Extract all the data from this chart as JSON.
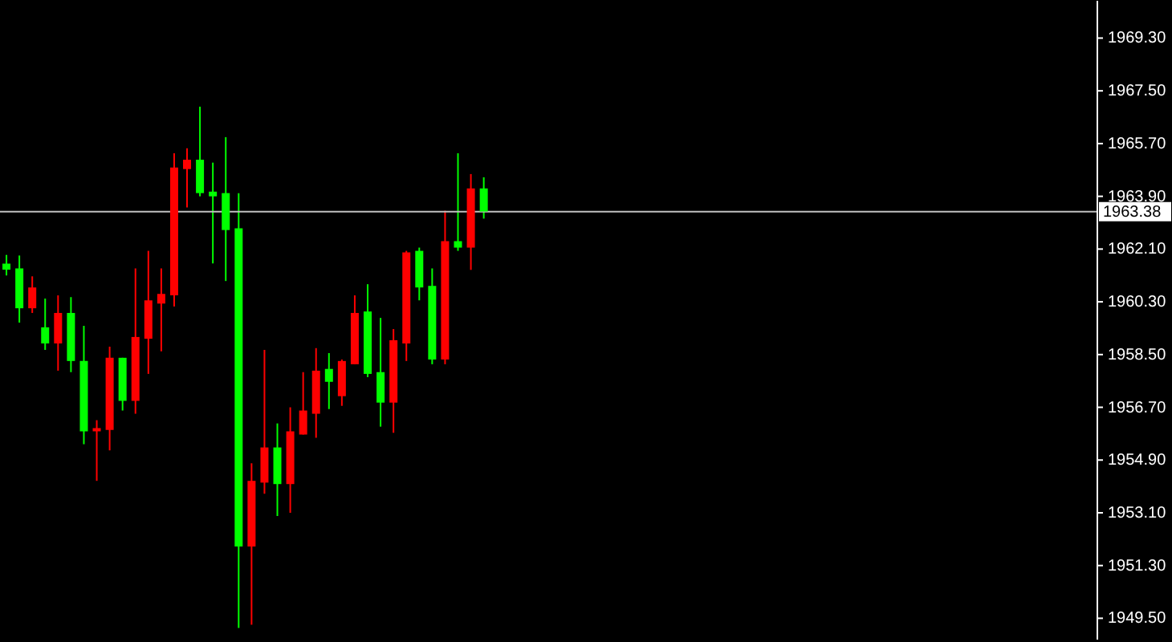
{
  "chart_data": {
    "type": "candlestick",
    "categories": [
      null,
      null,
      null,
      null,
      null,
      null,
      null,
      null,
      null,
      null,
      null,
      null,
      null,
      null,
      null,
      null,
      null,
      null,
      null,
      null,
      null,
      null,
      null,
      null,
      null,
      null,
      null,
      null,
      null,
      null,
      null,
      null,
      null,
      null,
      null,
      null,
      null,
      null,
      null,
      null,
      null,
      null,
      null,
      null,
      null,
      null,
      null,
      null,
      null,
      null,
      null,
      null,
      null,
      null,
      null,
      null,
      null,
      null,
      null,
      null,
      null,
      null,
      null,
      null,
      null,
      null,
      null,
      null,
      null,
      null,
      null,
      null,
      null,
      null,
      null,
      null,
      null,
      null,
      null,
      null,
      null,
      null,
      null,
      null,
      null
    ],
    "ohlc": [
      [
        1961.6,
        1961.9,
        1961.2,
        1961.4
      ],
      [
        1961.44,
        1961.88,
        1959.59,
        1960.08
      ],
      [
        1960.08,
        1961.17,
        1959.92,
        1960.79
      ],
      [
        1959.43,
        1960.41,
        1958.66,
        1958.88
      ],
      [
        1958.88,
        1960.52,
        1957.95,
        1959.92
      ],
      [
        1959.92,
        1960.46,
        1957.9,
        1958.28
      ],
      [
        1958.28,
        1959.48,
        1955.44,
        1955.88
      ],
      [
        1955.88,
        1956.26,
        1954.19,
        1955.99
      ],
      [
        1955.93,
        1958.77,
        1955.23,
        1958.39
      ],
      [
        1958.39,
        1958.39,
        1956.59,
        1956.92
      ],
      [
        1956.92,
        1961.44,
        1956.48,
        1959.1
      ],
      [
        1959.04,
        1962.04,
        1957.84,
        1960.35
      ],
      [
        1960.24,
        1961.44,
        1958.61,
        1960.57
      ],
      [
        1960.52,
        1965.37,
        1960.14,
        1964.88
      ],
      [
        1964.83,
        1965.54,
        1963.52,
        1965.15
      ],
      [
        1965.15,
        1966.96,
        1963.9,
        1964.01
      ],
      [
        1964.06,
        1965.05,
        1961.61,
        1963.9
      ],
      [
        1964.01,
        1965.92,
        1961.01,
        1962.75
      ],
      [
        1962.81,
        1964.01,
        1949.17,
        1951.95
      ],
      [
        1951.95,
        1954.79,
        1949.28,
        1954.19
      ],
      [
        1954.13,
        1958.66,
        1953.75,
        1955.33
      ],
      [
        1955.33,
        1956.15,
        1952.99,
        1954.08
      ],
      [
        1954.08,
        1956.7,
        1953.1,
        1955.88
      ],
      [
        1955.77,
        1957.9,
        1955.77,
        1956.59
      ],
      [
        1956.48,
        1958.72,
        1955.66,
        1957.95
      ],
      [
        1958.01,
        1958.55,
        1956.64,
        1957.57
      ],
      [
        1957.08,
        1958.33,
        1956.75,
        1958.28
      ],
      [
        1958.17,
        1960.52,
        1958.17,
        1959.92
      ],
      [
        1959.97,
        1960.9,
        1957.73,
        1957.84
      ],
      [
        1957.9,
        1959.75,
        1956.04,
        1956.86
      ],
      [
        1956.86,
        1959.37,
        1955.83,
        1958.99
      ],
      [
        1958.88,
        1962.04,
        1958.28,
        1961.99
      ],
      [
        1962.04,
        1962.15,
        1960.35,
        1960.79
      ],
      [
        1960.84,
        1961.44,
        1958.17,
        1958.33
      ],
      [
        1958.33,
        1963.41,
        1958.17,
        1962.37
      ],
      [
        1962.37,
        1965.37,
        1962.04,
        1962.15
      ],
      [
        1962.15,
        1964.66,
        1961.39,
        1964.17
      ],
      [
        1964.17,
        1964.55,
        1963.14,
        1963.38
      ],
      null,
      null,
      null,
      null,
      null,
      null,
      null,
      null,
      null,
      null,
      null,
      null,
      null,
      null,
      null,
      null,
      null,
      null,
      null,
      null,
      null,
      null,
      null,
      null,
      null,
      null,
      null,
      null,
      null,
      null,
      null,
      null,
      null,
      null,
      null,
      null,
      null,
      null,
      null,
      null,
      null,
      null,
      null,
      null,
      null,
      null,
      null
    ],
    "colors": [
      "#00ff00",
      "#00ff00",
      "#ff0000",
      "#00ff00",
      "#ff0000",
      "#00ff00",
      "#00ff00",
      "#ff0000",
      "#ff0000",
      "#00ff00",
      "#ff0000",
      "#ff0000",
      "#ff0000",
      "#ff0000",
      "#ff0000",
      "#00ff00",
      "#00ff00",
      "#00ff00",
      "#00ff00",
      "#ff0000",
      "#ff0000",
      "#00ff00",
      "#ff0000",
      "#ff0000",
      "#ff0000",
      "#00ff00",
      "#ff0000",
      "#ff0000",
      "#00ff00",
      "#00ff00",
      "#ff0000",
      "#ff0000",
      "#00ff00",
      "#00ff00",
      "#ff0000",
      "#00ff00",
      "#ff0000",
      "#00ff00",
      null,
      null,
      null,
      null,
      null,
      null,
      null,
      null,
      null,
      null,
      null,
      null,
      null,
      null,
      null,
      null,
      null,
      null,
      null,
      null,
      null,
      null,
      null,
      null,
      null,
      null,
      null,
      null,
      null,
      null,
      null,
      null,
      null,
      null,
      null,
      null,
      null,
      null,
      null,
      null,
      null,
      null,
      null,
      null,
      null,
      null,
      null
    ],
    "ylim": [
      1948.8,
      1970.6
    ],
    "yticks": [
      {
        "value": 1949.5,
        "label": "1949.50"
      },
      {
        "value": 1951.3,
        "label": "1951.30"
      },
      {
        "value": 1953.1,
        "label": "1953.10"
      },
      {
        "value": 1954.9,
        "label": "1954.90"
      },
      {
        "value": 1956.7,
        "label": "1956.70"
      },
      {
        "value": 1958.5,
        "label": "1958.50"
      },
      {
        "value": 1960.3,
        "label": "1960.30"
      },
      {
        "value": 1962.1,
        "label": "1962.10"
      },
      {
        "value": 1963.9,
        "label": "1963.90"
      },
      {
        "value": 1965.7,
        "label": "1965.70"
      },
      {
        "value": 1967.5,
        "label": "1967.50"
      },
      {
        "value": 1969.3,
        "label": "1969.30"
      }
    ],
    "ref_lines": [
      {
        "axis": "y",
        "value": 1963.38,
        "label": "1963.38",
        "color": "#c0c0c0"
      }
    ],
    "tick_labels": "y",
    "grid": false
  }
}
